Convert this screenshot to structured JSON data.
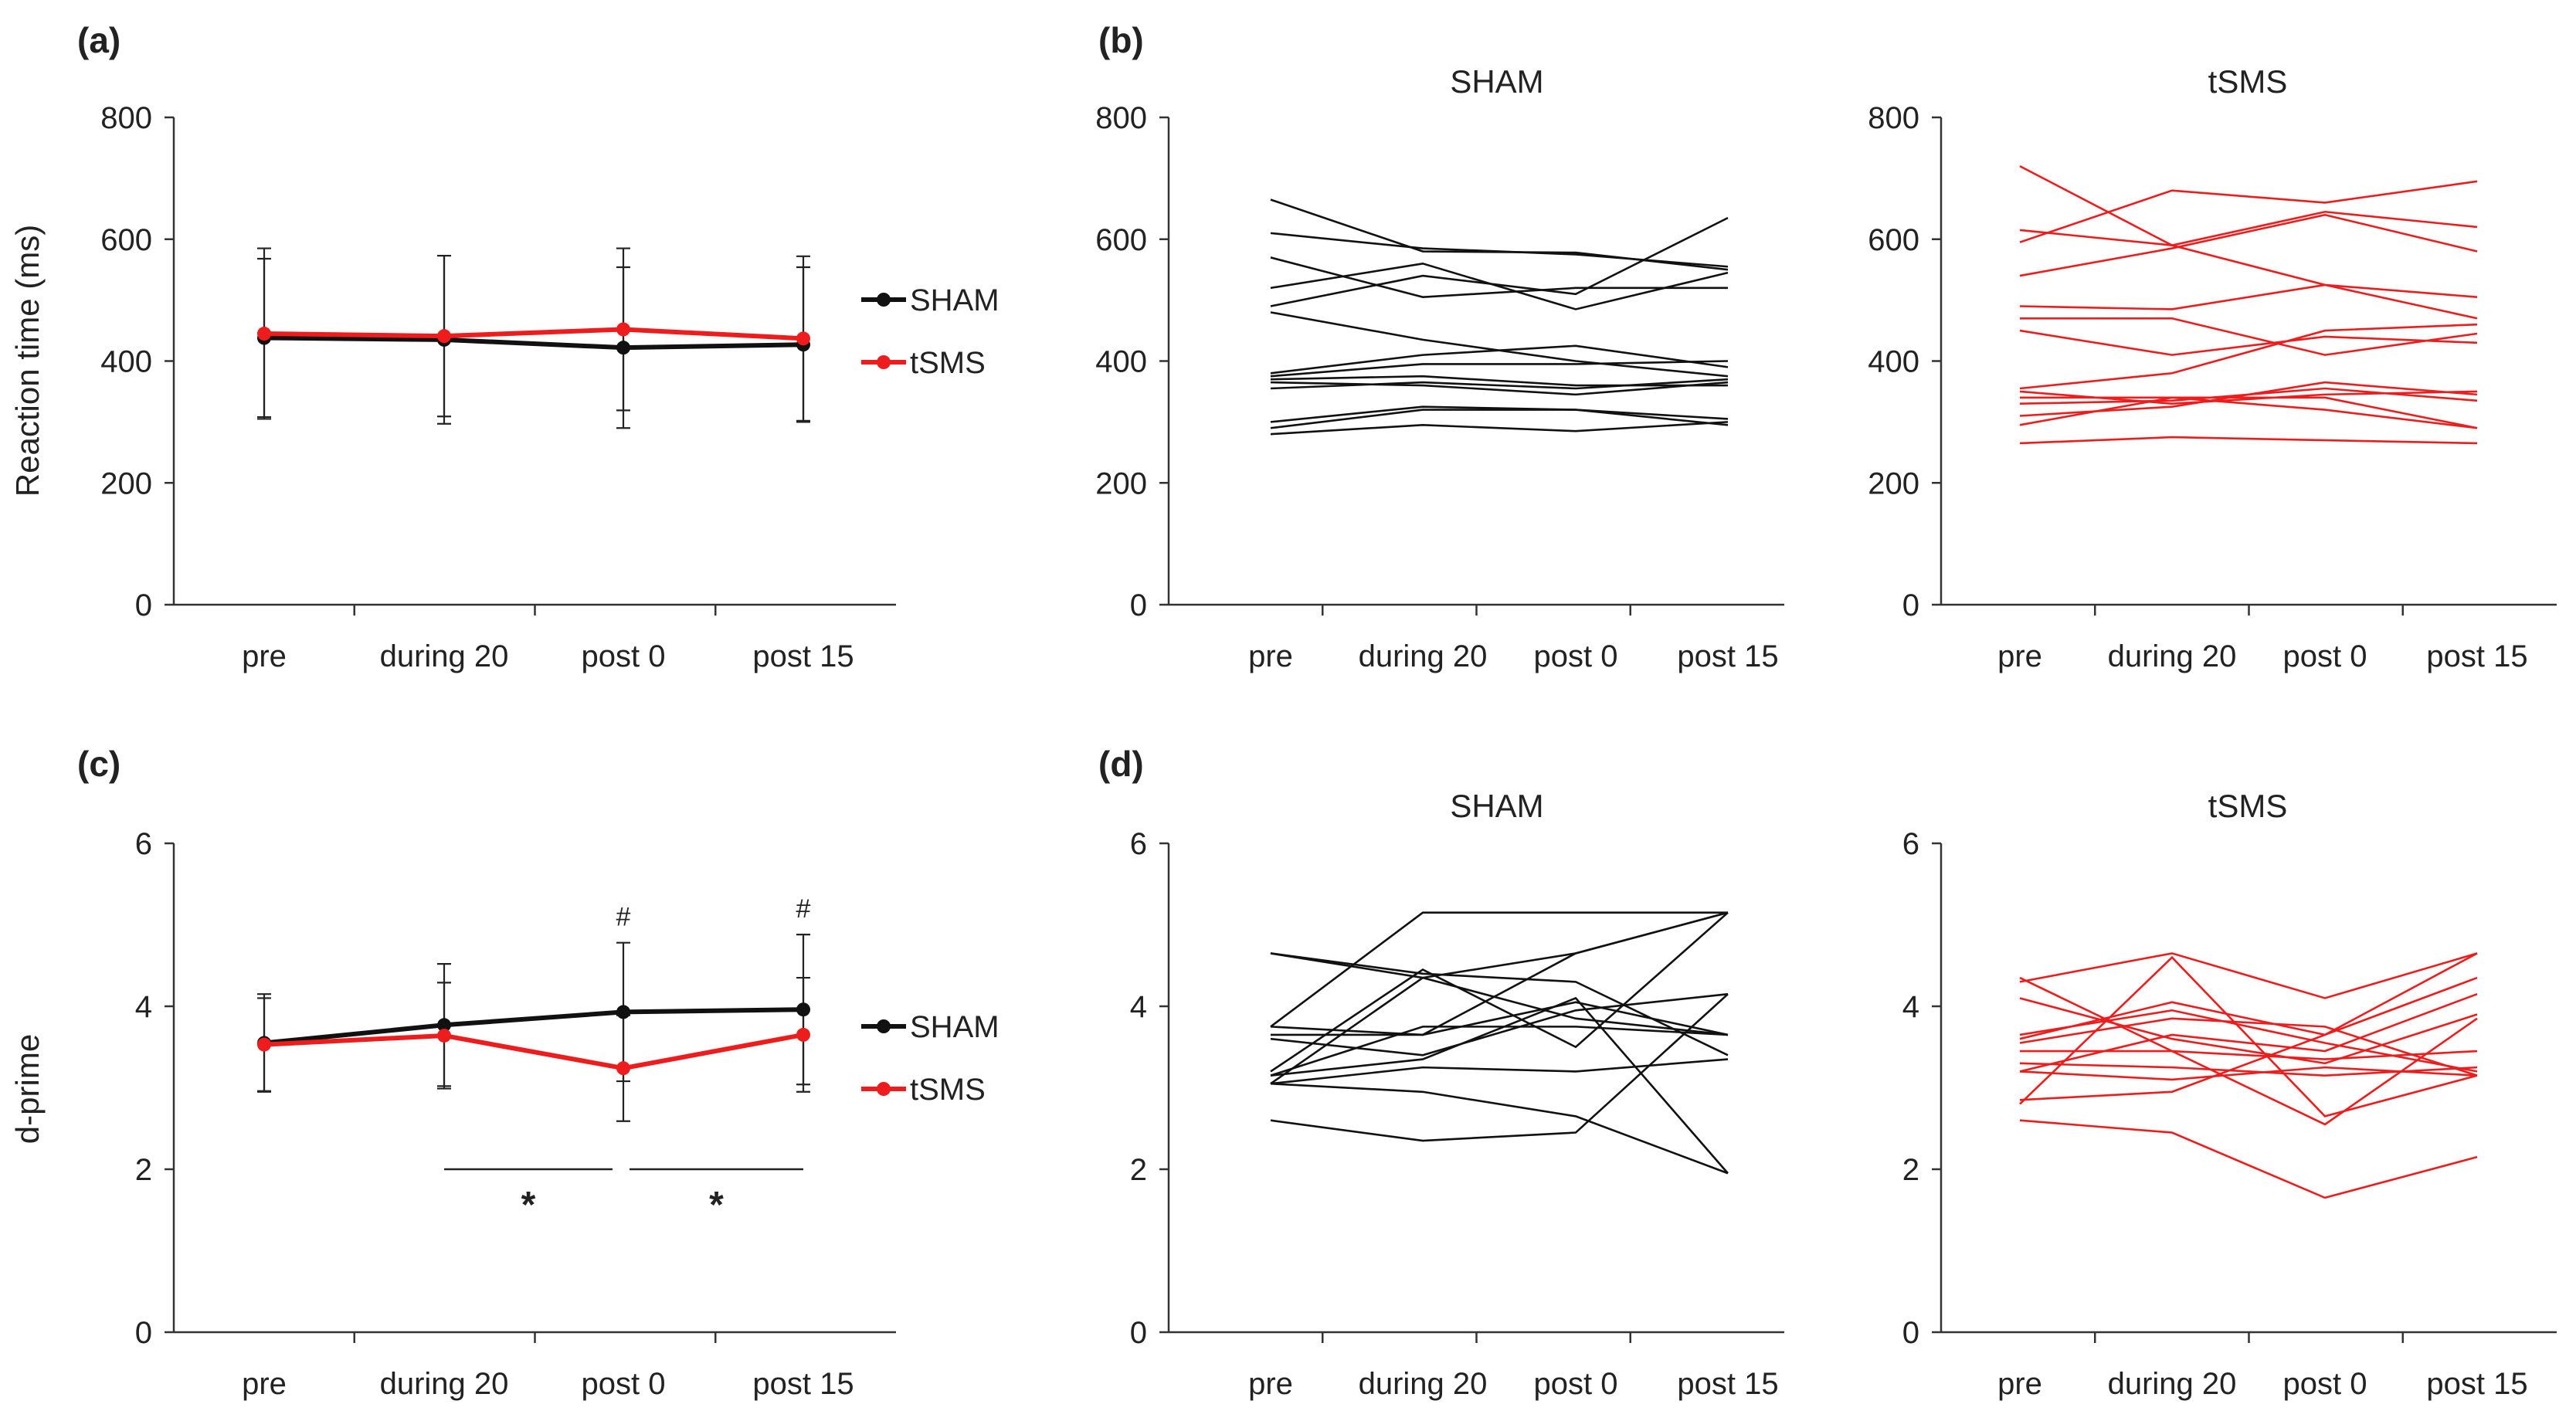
{
  "colors": {
    "sham": "#111111",
    "tsms": "#ee1c1c",
    "axis": "#333333"
  },
  "panels": {
    "a": {
      "label": "(a)"
    },
    "b": {
      "label": "(b)"
    },
    "c": {
      "label": "(c)"
    },
    "d": {
      "label": "(d)"
    }
  },
  "chart_data": [
    {
      "id": "a",
      "type": "line",
      "title": "(a)",
      "ylabel": "Reaction time (ms)",
      "xlabel": "",
      "categories": [
        "pre",
        "during 20",
        "post 0",
        "post 15"
      ],
      "ylim": [
        0,
        800
      ],
      "yticks": [
        0,
        200,
        400,
        600,
        800
      ],
      "legend": "right",
      "series": [
        {
          "name": "SHAM",
          "color": "#111111",
          "values": [
            438,
            435,
            422,
            427
          ],
          "error": [
            130,
            138,
            132,
            127
          ]
        },
        {
          "name": "tSMS",
          "color": "#ee1c1c",
          "values": [
            445,
            441,
            452,
            437
          ],
          "error": [
            140,
            132,
            133,
            135
          ]
        }
      ]
    },
    {
      "id": "b-sham",
      "type": "line",
      "title": "SHAM",
      "categories": [
        "pre",
        "during 20",
        "post 0",
        "post 15"
      ],
      "ylim": [
        0,
        800
      ],
      "yticks": [
        0,
        200,
        400,
        600,
        800
      ],
      "color": "#111111",
      "series": [
        [
          665,
          580,
          578,
          550
        ],
        [
          610,
          585,
          575,
          555
        ],
        [
          570,
          505,
          520,
          520
        ],
        [
          520,
          560,
          485,
          545
        ],
        [
          490,
          540,
          510,
          635
        ],
        [
          480,
          435,
          400,
          375
        ],
        [
          380,
          410,
          425,
          390
        ],
        [
          375,
          395,
          395,
          400
        ],
        [
          370,
          375,
          360,
          360
        ],
        [
          365,
          360,
          345,
          365
        ],
        [
          355,
          365,
          355,
          370
        ],
        [
          300,
          325,
          320,
          295
        ],
        [
          290,
          320,
          320,
          305
        ],
        [
          280,
          295,
          285,
          300
        ]
      ]
    },
    {
      "id": "b-tsms",
      "type": "line",
      "title": "tSMS",
      "categories": [
        "pre",
        "during 20",
        "post 0",
        "post 15"
      ],
      "ylim": [
        0,
        800
      ],
      "yticks": [
        0,
        200,
        400,
        600,
        800
      ],
      "color": "#ee1c1c",
      "series": [
        [
          720,
          590,
          525,
          470
        ],
        [
          615,
          590,
          645,
          620
        ],
        [
          595,
          680,
          660,
          695
        ],
        [
          540,
          585,
          640,
          580
        ],
        [
          490,
          485,
          525,
          505
        ],
        [
          470,
          470,
          410,
          445
        ],
        [
          450,
          410,
          440,
          430
        ],
        [
          355,
          380,
          450,
          460
        ],
        [
          350,
          330,
          345,
          350
        ],
        [
          340,
          340,
          320,
          290
        ],
        [
          330,
          335,
          355,
          335
        ],
        [
          310,
          325,
          365,
          345
        ],
        [
          295,
          340,
          340,
          290
        ],
        [
          265,
          275,
          270,
          265
        ]
      ]
    },
    {
      "id": "c",
      "type": "line",
      "title": "(c)",
      "ylabel": "d-prime",
      "xlabel": "",
      "categories": [
        "pre",
        "during 20",
        "post 0",
        "post 15"
      ],
      "ylim": [
        0,
        6
      ],
      "yticks": [
        0,
        2,
        4,
        6
      ],
      "legend": "right",
      "series": [
        {
          "name": "SHAM",
          "color": "#111111",
          "values": [
            3.55,
            3.77,
            3.93,
            3.96
          ],
          "error": [
            0.6,
            0.75,
            0.85,
            0.92
          ]
        },
        {
          "name": "tSMS",
          "color": "#ee1c1c",
          "values": [
            3.53,
            3.64,
            3.24,
            3.65
          ],
          "error": [
            0.57,
            0.65,
            0.65,
            0.7
          ]
        }
      ],
      "annotations": [
        {
          "type": "hash",
          "category": "post 0",
          "text": "#"
        },
        {
          "type": "hash",
          "category": "post 15",
          "text": "#"
        },
        {
          "type": "bracket",
          "from": "during 20",
          "to": "post 0",
          "y": 2.0,
          "text": "*"
        },
        {
          "type": "bracket",
          "from": "post 0",
          "to": "post 15",
          "y": 2.0,
          "text": "*"
        }
      ]
    },
    {
      "id": "d-sham",
      "type": "line",
      "title": "SHAM",
      "categories": [
        "pre",
        "during 20",
        "post 0",
        "post 15"
      ],
      "ylim": [
        0,
        6
      ],
      "yticks": [
        0,
        2,
        4,
        6
      ],
      "color": "#111111",
      "series": [
        [
          4.65,
          4.35,
          3.85,
          3.65
        ],
        [
          4.65,
          4.4,
          4.3,
          3.4
        ],
        [
          3.75,
          5.15,
          5.15,
          5.15
        ],
        [
          3.75,
          3.65,
          4.05,
          3.65
        ],
        [
          3.65,
          3.65,
          4.65,
          5.15
        ],
        [
          3.6,
          3.4,
          3.95,
          4.15
        ],
        [
          3.2,
          4.45,
          3.5,
          5.15
        ],
        [
          3.15,
          3.75,
          3.75,
          3.65
        ],
        [
          3.15,
          3.35,
          4.1,
          1.95
        ],
        [
          3.05,
          3.25,
          3.2,
          3.35
        ],
        [
          3.05,
          2.95,
          2.65,
          1.95
        ],
        [
          3.05,
          4.35,
          4.65,
          5.15
        ],
        [
          2.6,
          2.35,
          2.45,
          4.15
        ]
      ]
    },
    {
      "id": "d-tsms",
      "type": "line",
      "title": "tSMS",
      "categories": [
        "pre",
        "during 20",
        "post 0",
        "post 15"
      ],
      "ylim": [
        0,
        6
      ],
      "yticks": [
        0,
        2,
        4,
        6
      ],
      "color": "#ee1c1c",
      "series": [
        [
          4.35,
          3.45,
          2.55,
          3.85
        ],
        [
          4.3,
          4.65,
          4.1,
          4.65
        ],
        [
          4.1,
          3.6,
          3.3,
          3.9
        ],
        [
          3.65,
          3.95,
          3.55,
          3.2
        ],
        [
          3.6,
          4.05,
          3.65,
          4.35
        ],
        [
          3.55,
          3.85,
          3.75,
          3.15
        ],
        [
          3.45,
          3.45,
          3.35,
          3.45
        ],
        [
          3.3,
          3.25,
          3.15,
          3.25
        ],
        [
          3.2,
          3.1,
          3.25,
          3.15
        ],
        [
          3.2,
          3.65,
          3.45,
          4.15
        ],
        [
          2.85,
          2.95,
          3.65,
          4.65
        ],
        [
          2.6,
          2.45,
          1.65,
          2.15
        ],
        [
          2.8,
          4.6,
          2.65,
          3.15
        ]
      ]
    }
  ]
}
